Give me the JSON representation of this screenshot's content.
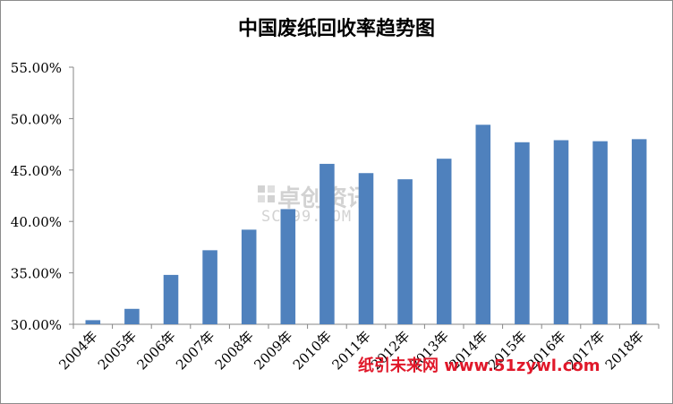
{
  "chart_data": {
    "type": "bar",
    "title": "中国废纸回收率趋势图",
    "categories": [
      "2004年",
      "2005年",
      "2006年",
      "2007年",
      "2008年",
      "2009年",
      "2010年",
      "2011年",
      "2012年",
      "2013年",
      "2014年",
      "2015年",
      "2016年",
      "2017年",
      "2018年"
    ],
    "values": [
      30.4,
      31.5,
      34.8,
      37.2,
      39.2,
      41.2,
      45.6,
      44.7,
      44.1,
      46.1,
      49.4,
      47.7,
      47.9,
      47.8,
      48.0
    ],
    "ylim": [
      30,
      55
    ],
    "yticks": [
      "30.00%",
      "35.00%",
      "40.00%",
      "45.00%",
      "50.00%",
      "55.00%"
    ],
    "ytick_values": [
      30,
      35,
      40,
      45,
      50,
      55
    ],
    "bar_color": "#4f81bd",
    "grid": false,
    "legend": "none"
  },
  "watermark": {
    "logo_text": "卓创资讯",
    "logo_sub": "SCI99.COM",
    "site_text": "纸引未来网 www.51zywl.com"
  }
}
